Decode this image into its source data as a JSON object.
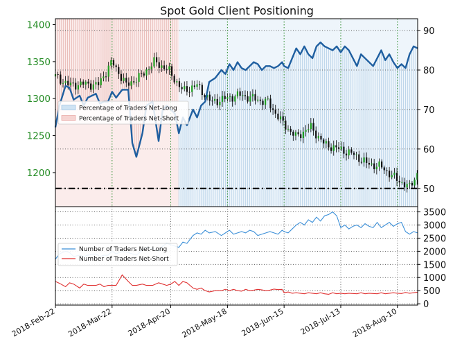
{
  "chart_data": [
    {
      "type": "line",
      "title": "Spot Gold Client Positioning",
      "x_ticks": [
        "2018-Feb-22",
        "2018-Mar-22",
        "2018-Apr-20",
        "2018-May-18",
        "2018-Jun-15",
        "2018-Jul-13",
        "2018-Aug-10"
      ],
      "y_left": {
        "ticks": [
          1200,
          1250,
          1300,
          1350,
          1400
        ],
        "range": [
          1154,
          1408
        ],
        "color": "#238b23"
      },
      "y_right": {
        "ticks": [
          50,
          60,
          70,
          80,
          90
        ],
        "range": [
          45.4,
          93
        ]
      },
      "grid": true,
      "legend": {
        "placement": "left",
        "entries": [
          "Percentage of Traders Net-Long",
          "Percentage of Traders Net-Short"
        ]
      },
      "background_fill": {
        "series": "Percentage of Traders Net-Long / Net-Short",
        "long_color": "#cfe3f3",
        "short_color": "#f6d4d2",
        "short_until": "2018-Apr-24"
      },
      "reference_line": {
        "value": 50,
        "axis": "right",
        "style": "dash-dot",
        "color": "#000000"
      },
      "series": [
        {
          "name": "Percentage of Traders Net-Long",
          "axis": "right",
          "color": "#1f5fa0",
          "day": [
            0,
            2,
            5,
            7,
            9,
            12,
            14,
            16,
            20,
            22,
            24,
            26,
            28,
            30,
            33,
            36,
            38,
            40,
            43,
            45,
            48,
            51,
            53,
            55,
            57,
            59,
            61,
            63,
            65,
            68,
            70,
            72,
            74,
            76,
            79,
            82,
            84,
            86,
            88,
            90,
            92,
            94,
            96,
            98,
            100,
            102,
            104,
            106,
            108,
            110,
            112,
            113,
            115,
            117,
            119,
            121,
            123,
            125,
            127,
            129,
            131,
            133,
            135,
            137,
            139,
            141,
            143,
            145,
            147,
            149,
            151,
            153,
            155,
            157,
            159,
            161,
            163,
            165,
            167,
            169,
            171,
            173,
            175,
            177,
            179
          ],
          "values": [
            65.5,
            71,
            76,
            75.5,
            72.5,
            73.5,
            71,
            73,
            74,
            71.5,
            72,
            72,
            74.5,
            73,
            75,
            75,
            61.5,
            58,
            64,
            71,
            72,
            62,
            70,
            71,
            70,
            69,
            64,
            68,
            66,
            70,
            68,
            71,
            72,
            77,
            78,
            80,
            79,
            81.5,
            80,
            82,
            80.5,
            80,
            81,
            82,
            81.5,
            80,
            81,
            81,
            80.5,
            81,
            82,
            81,
            80.5,
            83,
            85.5,
            84,
            86,
            84,
            83,
            86,
            87,
            86,
            85.5,
            85,
            86,
            84.5,
            86,
            85,
            83,
            81,
            84,
            83,
            82,
            81,
            83,
            85,
            82.5,
            84,
            82,
            80.5,
            81.5,
            80.5,
            84,
            86,
            85.5
          ]
        },
        {
          "name": "Spot Gold",
          "axis": "left",
          "type": "candlestick",
          "day": [
            0,
            7,
            14,
            21,
            28,
            35,
            42,
            49,
            56,
            63,
            70,
            77,
            84,
            91,
            98,
            105,
            112,
            119,
            126,
            133,
            140,
            147,
            154,
            161,
            168,
            175,
            179
          ],
          "close": [
            1330,
            1318,
            1320,
            1318,
            1350,
            1318,
            1330,
            1350,
            1338,
            1310,
            1318,
            1295,
            1300,
            1305,
            1300,
            1295,
            1268,
            1248,
            1262,
            1238,
            1232,
            1225,
            1212,
            1208,
            1192,
            1180,
            1200
          ]
        }
      ]
    },
    {
      "type": "line",
      "x_ticks": [
        "2018-Feb-22",
        "2018-Mar-22",
        "2018-Apr-20",
        "2018-May-18",
        "2018-Jun-15",
        "2018-Jul-13",
        "2018-Aug-10"
      ],
      "y_right": {
        "ticks": [
          0,
          500,
          1000,
          1500,
          2000,
          2500,
          3000,
          3500
        ],
        "range": [
          -50,
          3700
        ]
      },
      "grid": true,
      "legend": {
        "placement": "left",
        "entries": [
          "Number of Traders Net-Long",
          "Number of Traders Net-Short"
        ]
      },
      "series": [
        {
          "name": "Number of Traders Net-Long",
          "color": "#3b8fd8",
          "day": [
            0,
            2,
            5,
            7,
            9,
            12,
            14,
            16,
            20,
            22,
            24,
            26,
            28,
            30,
            33,
            36,
            38,
            40,
            43,
            45,
            48,
            51,
            53,
            55,
            57,
            59,
            61,
            63,
            65,
            68,
            70,
            72,
            74,
            76,
            79,
            82,
            84,
            86,
            88,
            90,
            92,
            94,
            96,
            98,
            100,
            102,
            104,
            106,
            108,
            110,
            112,
            113,
            115,
            117,
            119,
            121,
            123,
            125,
            127,
            129,
            131,
            133,
            135,
            137,
            139,
            141,
            143,
            145,
            147,
            149,
            151,
            153,
            155,
            157,
            159,
            161,
            163,
            165,
            167,
            169,
            171,
            173,
            175,
            177,
            179
          ],
          "values": [
            1700,
            1900,
            2000,
            1950,
            1800,
            1850,
            1800,
            1850,
            1900,
            1800,
            1850,
            1850,
            2000,
            1900,
            2000,
            1950,
            1900,
            1850,
            2050,
            2150,
            2100,
            2000,
            2200,
            2300,
            2250,
            2200,
            2150,
            2350,
            2300,
            2600,
            2700,
            2650,
            2800,
            2700,
            2750,
            2600,
            2700,
            2800,
            2650,
            2700,
            2750,
            2700,
            2800,
            2750,
            2600,
            2650,
            2700,
            2750,
            2700,
            2650,
            2800,
            2750,
            2700,
            2850,
            3000,
            3100,
            3000,
            3200,
            3100,
            3300,
            3150,
            3350,
            3400,
            3500,
            3350,
            2900,
            3000,
            2850,
            2950,
            3000,
            2900,
            3050,
            2950,
            2900,
            3100,
            2900,
            3000,
            3100,
            2950,
            3050,
            3100,
            2750,
            2650,
            2750,
            2700
          ]
        },
        {
          "name": "Number of Traders Net-Short",
          "color": "#e03030",
          "day": [
            0,
            2,
            5,
            7,
            9,
            12,
            14,
            16,
            20,
            22,
            24,
            26,
            28,
            30,
            33,
            36,
            38,
            40,
            43,
            45,
            48,
            51,
            53,
            55,
            57,
            59,
            61,
            63,
            65,
            68,
            70,
            72,
            74,
            76,
            79,
            82,
            84,
            86,
            88,
            90,
            92,
            94,
            96,
            98,
            100,
            102,
            104,
            106,
            108,
            110,
            112,
            113,
            115,
            117,
            119,
            121,
            123,
            125,
            127,
            129,
            131,
            133,
            135,
            137,
            139,
            141,
            143,
            145,
            147,
            149,
            151,
            153,
            155,
            157,
            159,
            161,
            163,
            165,
            167,
            169,
            171,
            173,
            175,
            177,
            179
          ],
          "values": [
            850,
            780,
            650,
            800,
            750,
            600,
            750,
            700,
            700,
            750,
            650,
            700,
            700,
            700,
            1100,
            850,
            700,
            700,
            750,
            700,
            700,
            800,
            750,
            700,
            750,
            850,
            700,
            850,
            800,
            600,
            550,
            600,
            500,
            450,
            500,
            500,
            550,
            500,
            550,
            500,
            480,
            550,
            500,
            520,
            550,
            530,
            500,
            520,
            560,
            540,
            550,
            420,
            450,
            400,
            420,
            400,
            380,
            420,
            400,
            380,
            420,
            380,
            360,
            420,
            380,
            400,
            380,
            400,
            390,
            380,
            420,
            380,
            400,
            390,
            380,
            420,
            380,
            400,
            420,
            400,
            390,
            430,
            400,
            420,
            440
          ]
        }
      ]
    }
  ]
}
